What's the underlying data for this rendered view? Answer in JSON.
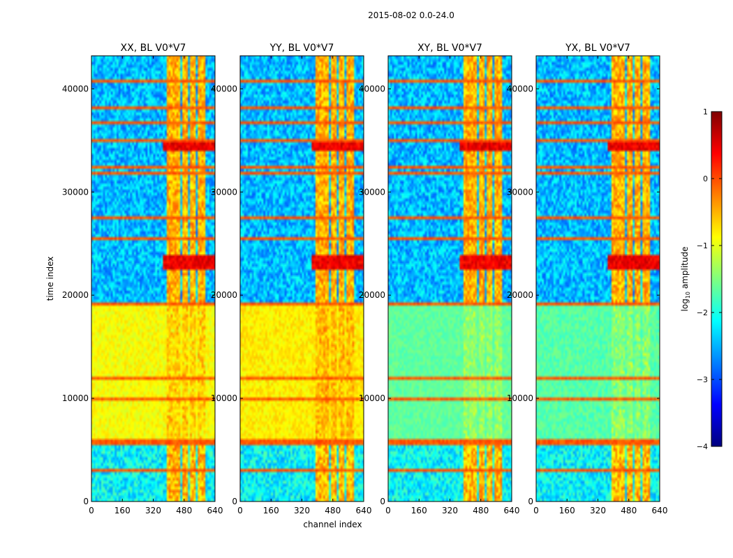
{
  "figure": {
    "suptitle": "2015-08-02 0.0-24.0"
  },
  "chart_data": {
    "type": "heatmap",
    "xlabel": "channel index",
    "ylabel": "time index",
    "xlim": [
      0,
      640
    ],
    "ylim": [
      0,
      43200
    ],
    "xticks": [
      0,
      160,
      320,
      480,
      640
    ],
    "yticks": [
      0,
      10000,
      20000,
      30000,
      40000
    ],
    "panels": [
      {
        "id": "xx",
        "title": "XX, BL V0*V7",
        "base_low": -1.1,
        "base_high": -0.7,
        "show_ylabel": true
      },
      {
        "id": "yy",
        "title": "YY, BL V0*V7",
        "base_low": -1.0,
        "base_high": -0.6,
        "show_xlabel": true
      },
      {
        "id": "xy",
        "title": "XY, BL V0*V7",
        "base_low": -1.8,
        "base_high": -1.5
      },
      {
        "id": "yx",
        "title": "YX, BL V0*V7",
        "base_low": -1.9,
        "base_high": -1.5
      }
    ],
    "colorbar": {
      "label": "log₁₀ amplitude",
      "label_prefix": "log",
      "label_sub": "10",
      "label_suffix": " amplitude",
      "min": -4,
      "max": 1,
      "ticks": [
        1,
        0,
        -1,
        -2,
        -3,
        -4
      ],
      "tick_labels": [
        "1",
        "0",
        "−1",
        "−2",
        "−3",
        "−4"
      ],
      "colormap": "jet"
    },
    "features": {
      "band_channels": [
        [
          395,
          425
        ],
        [
          430,
          455
        ],
        [
          470,
          500
        ],
        [
          510,
          540
        ],
        [
          555,
          590
        ]
      ],
      "rfi_time_rows": [
        2800,
        5600,
        5800,
        9800,
        12000,
        19200,
        25600,
        27600,
        31800,
        32600,
        35200,
        36800,
        38400,
        41000
      ],
      "low_state_time_range": [
        19000,
        43200
      ],
      "burst_time_ranges": [
        [
          22500,
          23800
        ],
        [
          34200,
          35000
        ]
      ]
    }
  }
}
